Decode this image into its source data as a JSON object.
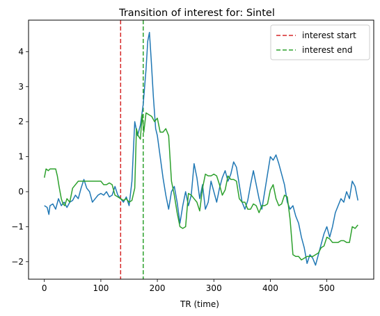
{
  "chart_data": {
    "type": "line",
    "title": "Transition of interest for: Sintel",
    "xlabel": "TR (time)",
    "ylabel": "",
    "xlim": [
      -28,
      583
    ],
    "ylim": [
      -2.5,
      4.9
    ],
    "xticks": [
      0,
      100,
      200,
      300,
      400,
      500
    ],
    "yticks": [
      -2,
      -1,
      0,
      1,
      2,
      3,
      4
    ],
    "grid": false,
    "legend_position": "top-right",
    "series": [
      {
        "color": "#1f77b4",
        "x": [
          0,
          5,
          8,
          10,
          15,
          20,
          25,
          30,
          35,
          40,
          45,
          50,
          55,
          60,
          65,
          70,
          75,
          80,
          85,
          90,
          95,
          100,
          105,
          110,
          115,
          120,
          125,
          130,
          135,
          140,
          145,
          150,
          155,
          160,
          165,
          170,
          175,
          180,
          183,
          186,
          189,
          193,
          197,
          200,
          205,
          210,
          215,
          220,
          225,
          230,
          235,
          240,
          245,
          250,
          255,
          260,
          265,
          270,
          275,
          280,
          285,
          290,
          295,
          300,
          305,
          310,
          315,
          320,
          325,
          330,
          335,
          340,
          345,
          350,
          355,
          360,
          365,
          370,
          375,
          380,
          385,
          390,
          395,
          400,
          405,
          410,
          415,
          420,
          425,
          430,
          435,
          440,
          445,
          450,
          455,
          460,
          465,
          470,
          475,
          480,
          485,
          490,
          495,
          500,
          505,
          510,
          515,
          520,
          525,
          530,
          535,
          540,
          545,
          550,
          555
        ],
        "values": [
          -0.4,
          -0.45,
          -0.65,
          -0.4,
          -0.35,
          -0.5,
          -0.2,
          -0.4,
          -0.3,
          -0.45,
          -0.3,
          -0.25,
          -0.1,
          -0.2,
          0.1,
          0.35,
          0.1,
          0.0,
          -0.3,
          -0.2,
          -0.1,
          -0.05,
          -0.1,
          0.0,
          -0.15,
          -0.1,
          0.15,
          -0.1,
          -0.2,
          -0.3,
          -0.15,
          -0.4,
          0.3,
          2.0,
          1.6,
          1.9,
          2.5,
          3.5,
          4.3,
          4.55,
          3.8,
          2.7,
          1.8,
          1.6,
          1.0,
          0.4,
          -0.1,
          -0.5,
          0.0,
          0.15,
          -0.3,
          -0.9,
          -0.4,
          0.0,
          -0.4,
          -0.1,
          0.8,
          0.4,
          -0.2,
          0.2,
          -0.5,
          -0.3,
          0.3,
          0.0,
          -0.3,
          0.1,
          0.4,
          0.6,
          0.3,
          0.5,
          0.85,
          0.7,
          0.2,
          -0.3,
          -0.5,
          -0.25,
          0.2,
          0.6,
          0.2,
          -0.2,
          -0.5,
          0.0,
          0.5,
          1.0,
          0.9,
          1.05,
          0.8,
          0.5,
          0.2,
          -0.3,
          -0.5,
          -0.4,
          -0.7,
          -0.9,
          -1.3,
          -1.6,
          -2.05,
          -1.8,
          -1.9,
          -2.1,
          -1.8,
          -1.5,
          -1.2,
          -1.0,
          -1.3,
          -1.0,
          -0.6,
          -0.4,
          -0.2,
          -0.3,
          0.0,
          -0.2,
          0.3,
          0.15,
          -0.25
        ]
      },
      {
        "color": "#2ca02c",
        "x": [
          0,
          3,
          7,
          10,
          15,
          20,
          23,
          26,
          30,
          33,
          36,
          40,
          45,
          50,
          55,
          60,
          65,
          70,
          75,
          80,
          85,
          90,
          95,
          100,
          105,
          110,
          115,
          120,
          125,
          130,
          135,
          140,
          145,
          150,
          155,
          160,
          163,
          166,
          170,
          173,
          176,
          180,
          185,
          190,
          195,
          200,
          205,
          210,
          215,
          220,
          225,
          230,
          235,
          240,
          245,
          250,
          255,
          260,
          265,
          270,
          275,
          280,
          285,
          290,
          295,
          300,
          305,
          310,
          315,
          320,
          325,
          330,
          335,
          340,
          345,
          350,
          355,
          360,
          365,
          370,
          375,
          380,
          385,
          390,
          395,
          400,
          405,
          410,
          415,
          420,
          425,
          430,
          435,
          440,
          445,
          450,
          455,
          460,
          465,
          470,
          475,
          480,
          485,
          490,
          495,
          500,
          505,
          510,
          515,
          520,
          525,
          530,
          535,
          540,
          545,
          550,
          555
        ],
        "values": [
          0.4,
          0.65,
          0.6,
          0.65,
          0.65,
          0.65,
          0.45,
          0.15,
          -0.2,
          -0.35,
          -0.4,
          -0.2,
          -0.3,
          0.1,
          0.2,
          0.3,
          0.3,
          0.3,
          0.3,
          0.3,
          0.3,
          0.3,
          0.3,
          0.3,
          0.2,
          0.2,
          0.25,
          0.2,
          -0.1,
          -0.15,
          -0.2,
          -0.25,
          -0.2,
          -0.3,
          -0.25,
          0.1,
          1.8,
          1.6,
          1.5,
          2.2,
          1.7,
          2.25,
          2.2,
          2.15,
          2.0,
          2.1,
          1.7,
          1.7,
          1.8,
          1.6,
          0.3,
          -0.1,
          -0.6,
          -1.0,
          -1.05,
          -1.0,
          -0.05,
          -0.1,
          -0.2,
          -0.3,
          -0.55,
          0.1,
          0.5,
          0.45,
          0.45,
          0.5,
          0.45,
          0.2,
          -0.1,
          0.05,
          0.45,
          0.35,
          0.35,
          0.3,
          -0.2,
          -0.3,
          -0.3,
          -0.5,
          -0.5,
          -0.35,
          -0.4,
          -0.6,
          -0.4,
          -0.4,
          -0.35,
          0.05,
          0.2,
          -0.2,
          -0.4,
          -0.35,
          -0.1,
          -0.15,
          -0.8,
          -1.8,
          -1.85,
          -1.85,
          -1.95,
          -1.9,
          -1.85,
          -1.85,
          -1.85,
          -1.8,
          -1.75,
          -1.6,
          -1.55,
          -1.3,
          -1.35,
          -1.45,
          -1.45,
          -1.45,
          -1.4,
          -1.4,
          -1.45,
          -1.45,
          -1.0,
          -1.05,
          -0.95
        ]
      }
    ],
    "vlines": [
      {
        "x": 135,
        "color": "#d62728",
        "style": "dashed",
        "name": "interest start"
      },
      {
        "x": 175,
        "color": "#2ca02c",
        "style": "dashed",
        "name": "interest end"
      }
    ]
  }
}
